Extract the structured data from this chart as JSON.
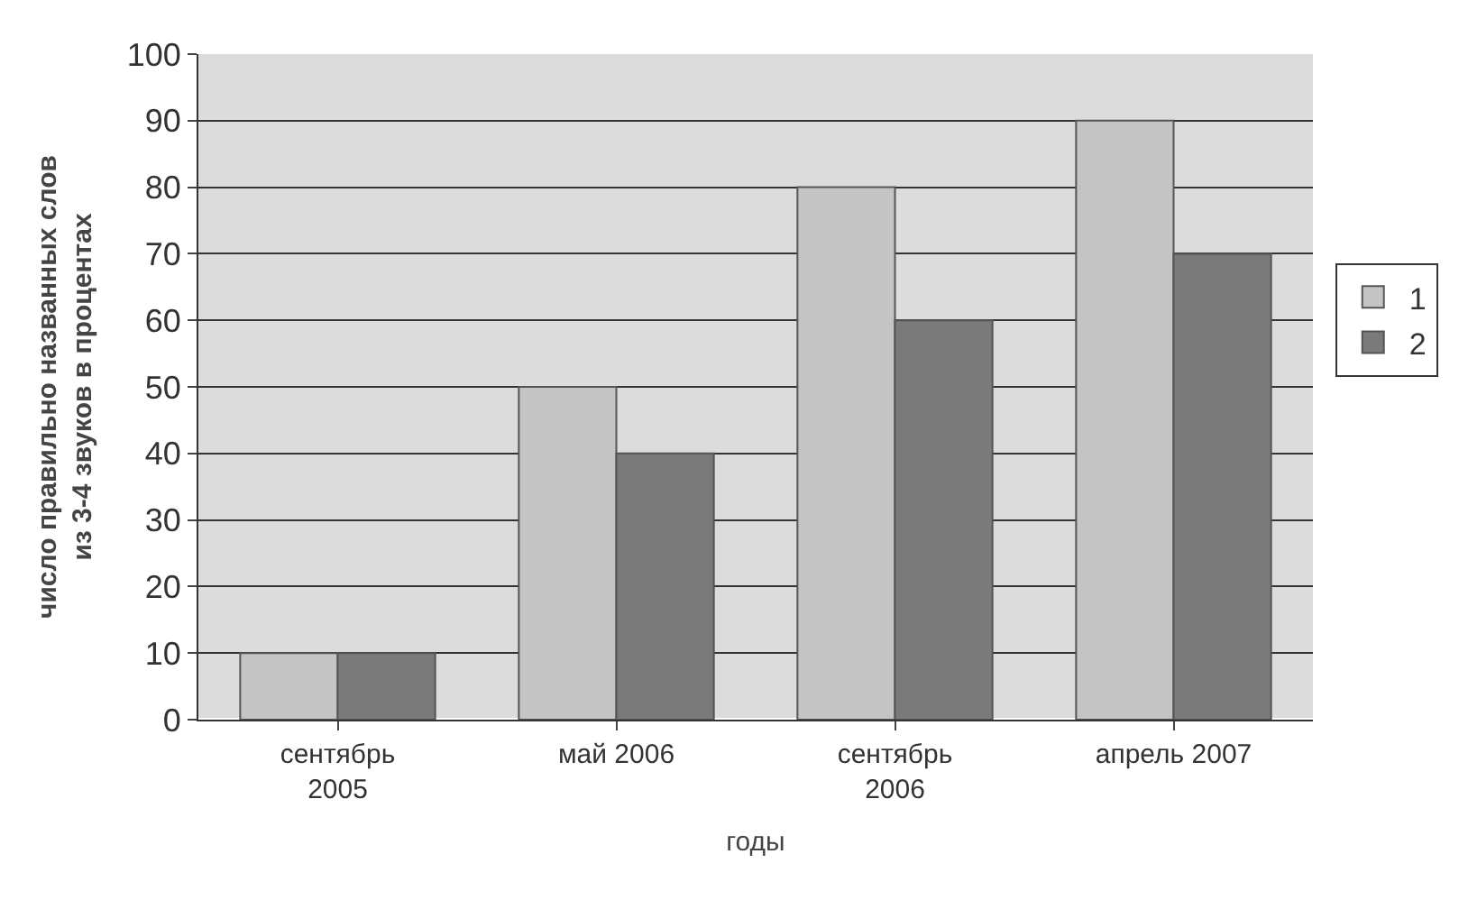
{
  "chart_data": {
    "type": "bar",
    "xlabel": "годы",
    "ylabel": "число правильно названных слов\nиз 3-4 звуков в процентах",
    "categories": [
      "сентябрь\n2005",
      "май 2006",
      "сентябрь\n2006",
      "апрель 2007"
    ],
    "series": [
      {
        "name": "1",
        "color": "#c4c4c4",
        "values": [
          10,
          50,
          80,
          90
        ]
      },
      {
        "name": "2",
        "color": "#7a7a7a",
        "values": [
          10,
          40,
          60,
          70
        ]
      }
    ],
    "ylim": [
      0,
      100
    ],
    "yticks": [
      0,
      10,
      20,
      30,
      40,
      50,
      60,
      70,
      80,
      90,
      100
    ],
    "grid": "y",
    "legend": "right"
  }
}
